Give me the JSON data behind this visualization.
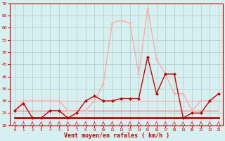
{
  "x": [
    0,
    1,
    2,
    3,
    4,
    5,
    6,
    7,
    8,
    9,
    10,
    11,
    12,
    13,
    14,
    15,
    16,
    17,
    18,
    19,
    20,
    21,
    22,
    23
  ],
  "mean_wind": [
    26,
    29,
    23,
    23,
    26,
    26,
    23,
    25,
    30,
    32,
    30,
    30,
    31,
    31,
    31,
    48,
    33,
    41,
    41,
    23,
    25,
    25,
    30,
    33
  ],
  "gust_wind": [
    26,
    30,
    30,
    30,
    30,
    30,
    26,
    26,
    26,
    30,
    37,
    62,
    63,
    62,
    41,
    68,
    47,
    41,
    33,
    33,
    26,
    30,
    30,
    33
  ],
  "flat_line1": [
    30,
    30,
    30,
    30,
    30,
    30,
    30,
    30,
    30,
    30,
    30,
    30,
    30,
    30,
    30,
    30,
    30,
    30,
    30,
    30,
    30,
    30,
    30,
    30
  ],
  "flat_line2": [
    23,
    23,
    23,
    23,
    23,
    23,
    23,
    23,
    23,
    23,
    23,
    23,
    23,
    23,
    23,
    23,
    23,
    23,
    23,
    23,
    23,
    23,
    23,
    23
  ],
  "flat_line3": [
    26,
    26,
    26,
    26,
    26,
    26,
    26,
    26,
    26,
    26,
    26,
    26,
    26,
    26,
    26,
    26,
    26,
    26,
    26,
    26,
    26,
    26,
    26,
    26
  ],
  "mean_color": "#cc0000",
  "gust_color": "#ffaaaa",
  "flat1_color": "#ffaaaa",
  "flat2_color": "#cc0000",
  "flat3_color": "#ff6666",
  "bg_color": "#d6f0f0",
  "grid_color": "#aacccc",
  "axis_color": "#cc0000",
  "xlabel": "Vent moyen/en rafales ( km/h )",
  "ylim": [
    20,
    70
  ],
  "yticks": [
    20,
    25,
    30,
    35,
    40,
    45,
    50,
    55,
    60,
    65,
    70
  ],
  "xticks": [
    0,
    1,
    2,
    3,
    4,
    5,
    6,
    7,
    8,
    9,
    10,
    11,
    12,
    13,
    14,
    15,
    16,
    17,
    18,
    19,
    20,
    21,
    22,
    23
  ]
}
